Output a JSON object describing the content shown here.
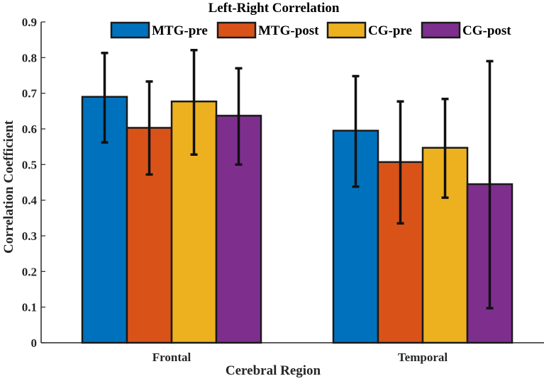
{
  "chart_data": {
    "type": "bar",
    "title": "Left-Right Correlation",
    "xlabel": "Cerebral Region",
    "ylabel": "Correlation Coefficient",
    "ylim": [
      0,
      0.9
    ],
    "yticks": [
      "0",
      "0.1",
      "0.2",
      "0.3",
      "0.4",
      "0.5",
      "0.6",
      "0.7",
      "0.8",
      "0.9"
    ],
    "categories": [
      "Frontal",
      "Temporal"
    ],
    "legend_position": "top",
    "series": [
      {
        "name": "MTG-pre",
        "color": "#0072BD",
        "values": [
          0.69,
          0.595
        ],
        "err_low": [
          0.562,
          0.438
        ],
        "err_high": [
          0.813,
          0.748
        ]
      },
      {
        "name": "MTG-post",
        "color": "#D95319",
        "values": [
          0.603,
          0.507
        ],
        "err_low": [
          0.472,
          0.335
        ],
        "err_high": [
          0.733,
          0.677
        ]
      },
      {
        "name": "CG-pre",
        "color": "#EDB120",
        "values": [
          0.677,
          0.547
        ],
        "err_low": [
          0.528,
          0.407
        ],
        "err_high": [
          0.821,
          0.684
        ]
      },
      {
        "name": "CG-post",
        "color": "#7E2F8E",
        "values": [
          0.637,
          0.445
        ],
        "err_low": [
          0.5,
          0.097
        ],
        "err_high": [
          0.77,
          0.79
        ]
      }
    ]
  }
}
